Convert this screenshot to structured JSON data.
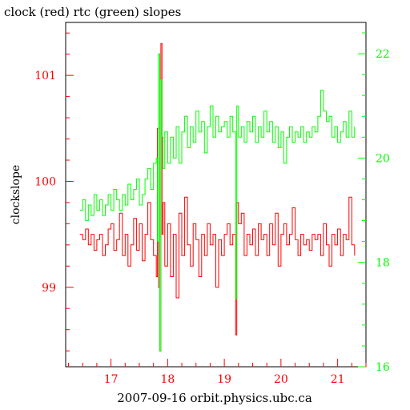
{
  "chart_data": {
    "type": "line",
    "title": "clock (red) rtc (green) slopes",
    "xlabel": "2007-09-16 orbit.physics.ubc.ca",
    "ylabel": "clockslope",
    "xlim": [
      16.2,
      21.5
    ],
    "ylim_left": [
      98.25,
      101.5
    ],
    "ylim_right": [
      16.0,
      22.6
    ],
    "x_ticks": [
      17,
      18,
      19,
      20,
      21
    ],
    "x_tick_labels": [
      "17",
      "18",
      "19",
      "20",
      "21"
    ],
    "y_left_ticks": [
      99,
      100,
      101
    ],
    "y_left_tick_labels": [
      "99",
      "100",
      "101"
    ],
    "y_right_ticks": [
      16,
      18,
      20,
      22
    ],
    "y_right_tick_labels": [
      "16",
      "18",
      "20",
      "22"
    ],
    "grid": false,
    "colors": {
      "clock": "#ff0000",
      "rtc": "#00ff00",
      "axes": "#000000"
    },
    "series": [
      {
        "name": "clock",
        "axis": "left",
        "color": "#ff0000",
        "x": [
          16.45,
          16.5,
          16.55,
          16.6,
          16.65,
          16.7,
          16.75,
          16.8,
          16.85,
          16.9,
          16.95,
          17.0,
          17.05,
          17.1,
          17.15,
          17.2,
          17.25,
          17.3,
          17.35,
          17.4,
          17.45,
          17.5,
          17.55,
          17.6,
          17.65,
          17.7,
          17.75,
          17.8,
          17.82,
          17.84,
          17.86,
          17.88,
          17.9,
          17.92,
          17.95,
          18.0,
          18.05,
          18.1,
          18.15,
          18.2,
          18.25,
          18.3,
          18.35,
          18.4,
          18.45,
          18.5,
          18.55,
          18.6,
          18.65,
          18.7,
          18.75,
          18.8,
          18.85,
          18.9,
          18.95,
          19.0,
          19.05,
          19.1,
          19.15,
          19.2,
          19.22,
          19.25,
          19.3,
          19.35,
          19.4,
          19.45,
          19.5,
          19.55,
          19.6,
          19.65,
          19.7,
          19.75,
          19.8,
          19.85,
          19.9,
          19.95,
          20.0,
          20.05,
          20.1,
          20.15,
          20.2,
          20.25,
          20.3,
          20.35,
          20.4,
          20.45,
          20.5,
          20.55,
          20.6,
          20.65,
          20.7,
          20.75,
          20.8,
          20.85,
          20.9,
          20.95,
          21.0,
          21.05,
          21.1,
          21.15,
          21.2,
          21.25,
          21.3
        ],
        "y": [
          99.5,
          99.45,
          99.55,
          99.4,
          99.5,
          99.35,
          99.45,
          99.5,
          99.3,
          99.4,
          99.55,
          99.6,
          99.35,
          99.45,
          99.7,
          99.3,
          99.5,
          99.2,
          99.4,
          99.65,
          99.35,
          99.6,
          99.25,
          99.5,
          99.8,
          99.45,
          99.3,
          99.1,
          100.5,
          99.0,
          98.4,
          101.3,
          99.5,
          99.8,
          99.2,
          99.6,
          99.1,
          99.5,
          98.9,
          99.7,
          99.3,
          99.85,
          99.4,
          99.2,
          99.6,
          99.45,
          99.1,
          99.5,
          99.3,
          99.6,
          99.4,
          99.5,
          99.0,
          99.45,
          99.3,
          99.5,
          99.6,
          99.4,
          99.5,
          98.55,
          99.8,
          99.6,
          99.7,
          99.3,
          99.5,
          99.4,
          99.55,
          99.3,
          99.6,
          99.45,
          99.5,
          99.3,
          99.6,
          99.4,
          99.7,
          99.2,
          99.5,
          99.6,
          99.4,
          99.5,
          99.75,
          99.45,
          99.3,
          99.5,
          99.4,
          99.45,
          99.35,
          99.5,
          99.45,
          99.5,
          99.3,
          99.6,
          99.4,
          99.2,
          99.5,
          99.4,
          99.55,
          99.3,
          99.5,
          99.45,
          99.85,
          99.4,
          99.3
        ]
      },
      {
        "name": "rtc",
        "axis": "right",
        "color": "#00ff00",
        "x": [
          16.45,
          16.5,
          16.55,
          16.6,
          16.65,
          16.7,
          16.75,
          16.8,
          16.85,
          16.9,
          16.95,
          17.0,
          17.05,
          17.1,
          17.15,
          17.2,
          17.25,
          17.3,
          17.35,
          17.4,
          17.45,
          17.5,
          17.55,
          17.6,
          17.65,
          17.7,
          17.75,
          17.8,
          17.82,
          17.84,
          17.86,
          17.88,
          17.9,
          17.92,
          17.95,
          18.0,
          18.05,
          18.1,
          18.15,
          18.2,
          18.25,
          18.3,
          18.35,
          18.4,
          18.45,
          18.5,
          18.55,
          18.6,
          18.65,
          18.7,
          18.75,
          18.8,
          18.85,
          18.9,
          18.95,
          19.0,
          19.05,
          19.1,
          19.15,
          19.2,
          19.22,
          19.25,
          19.3,
          19.35,
          19.4,
          19.45,
          19.5,
          19.55,
          19.6,
          19.65,
          19.7,
          19.75,
          19.8,
          19.85,
          19.9,
          19.95,
          20.0,
          20.05,
          20.1,
          20.15,
          20.2,
          20.25,
          20.3,
          20.35,
          20.4,
          20.45,
          20.5,
          20.55,
          20.6,
          20.65,
          20.7,
          20.75,
          20.8,
          20.85,
          20.9,
          20.95,
          21.0,
          21.05,
          21.1,
          21.15,
          21.2,
          21.25,
          21.3
        ],
        "y": [
          19.0,
          19.2,
          18.8,
          19.1,
          18.9,
          19.3,
          19.0,
          19.2,
          18.9,
          19.1,
          19.3,
          19.0,
          19.4,
          19.2,
          19.0,
          19.3,
          19.1,
          19.5,
          19.2,
          19.4,
          19.6,
          19.1,
          19.3,
          19.6,
          19.8,
          19.4,
          19.9,
          20.0,
          18.4,
          22.0,
          16.3,
          21.5,
          20.4,
          19.8,
          20.5,
          19.9,
          20.4,
          20.0,
          20.6,
          19.9,
          20.5,
          20.8,
          20.2,
          20.6,
          20.3,
          20.9,
          20.5,
          20.7,
          20.1,
          20.6,
          21.0,
          20.4,
          20.8,
          20.5,
          20.6,
          20.7,
          20.4,
          20.8,
          20.5,
          17.3,
          21.0,
          20.4,
          20.6,
          20.3,
          20.7,
          20.5,
          20.8,
          20.3,
          20.6,
          20.4,
          20.9,
          20.5,
          20.7,
          20.3,
          20.6,
          20.2,
          20.5,
          19.9,
          20.4,
          20.6,
          20.3,
          20.5,
          20.4,
          20.6,
          20.3,
          20.5,
          20.4,
          20.6,
          20.5,
          20.8,
          21.3,
          20.9,
          20.7,
          20.8,
          20.4,
          20.6,
          20.3,
          20.5,
          20.7,
          20.4,
          20.9,
          20.4,
          20.6
        ]
      }
    ]
  }
}
